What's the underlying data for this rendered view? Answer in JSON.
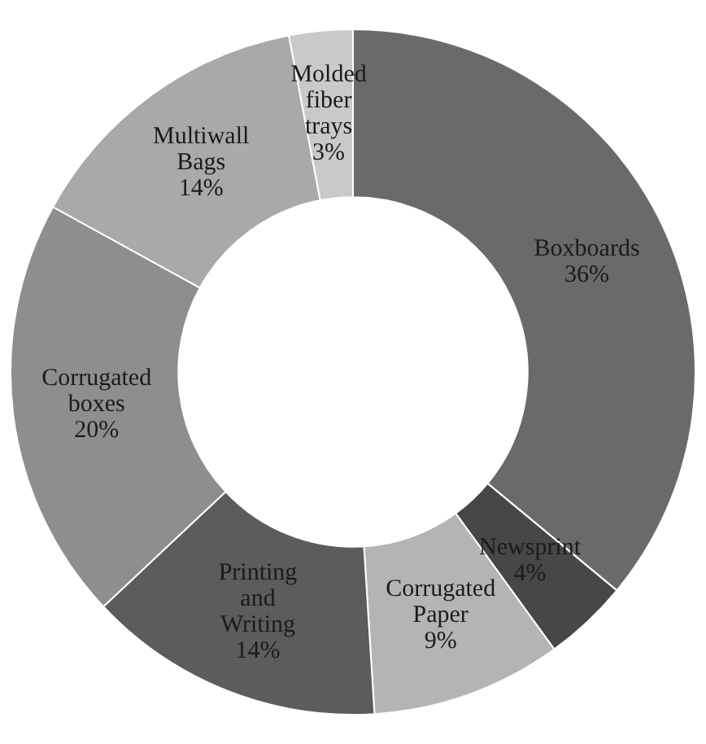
{
  "chart_data": {
    "type": "donut",
    "categories": [
      "Boxboards",
      "Newsprint",
      "Corrugated Paper",
      "Printing and Writing",
      "Corrugated boxes",
      "Multiwall Bags",
      "Molded fiber trays"
    ],
    "values": [
      36,
      4,
      9,
      14,
      20,
      14,
      3
    ],
    "value_labels": [
      "36%",
      "4%",
      "9%",
      "14%",
      "20%",
      "14%",
      "3%"
    ],
    "colors": [
      "#6a6a6a",
      "#474747",
      "#b4b4b4",
      "#5c5c5c",
      "#8e8e8e",
      "#a9a9a9",
      "#c9c9c9"
    ],
    "legend": false
  }
}
